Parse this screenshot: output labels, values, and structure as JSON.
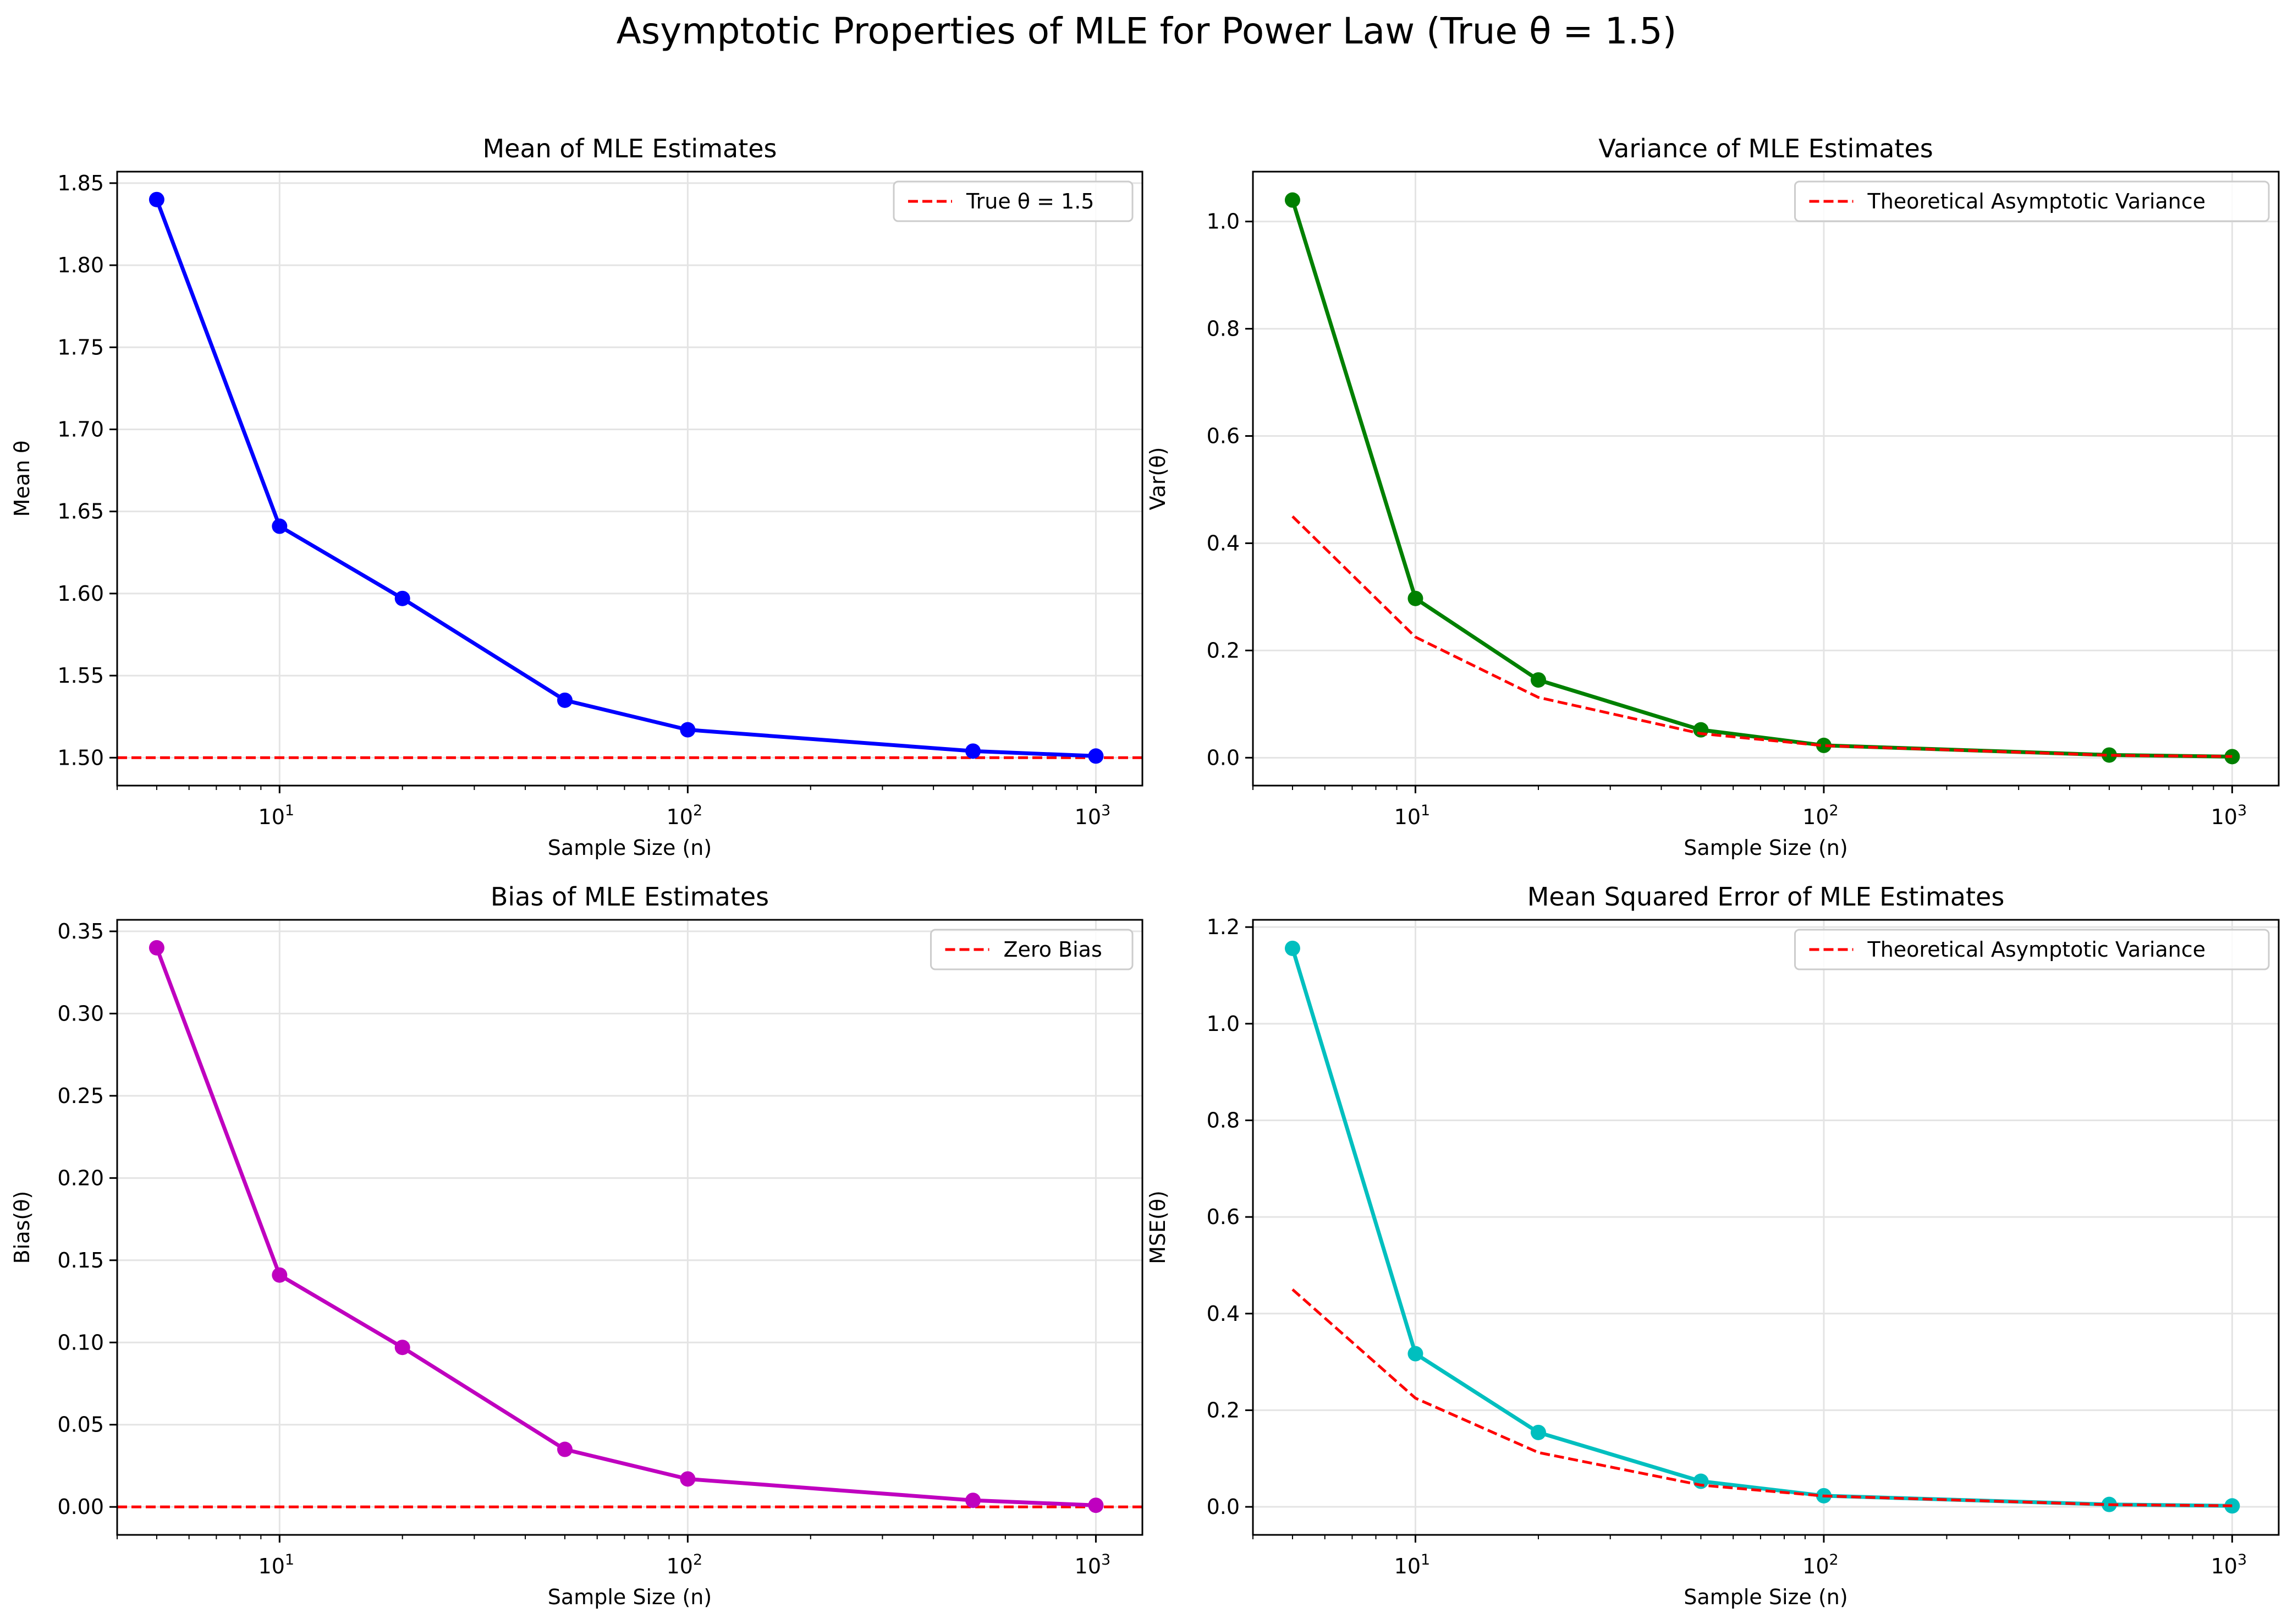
{
  "figure_title": "Asymptotic Properties of MLE for Power Law (True θ = 1.5)",
  "chart_data": [
    {
      "type": "line",
      "title": "Mean of MLE Estimates",
      "xlabel": "Sample Size (n)",
      "ylabel": "Mean θ",
      "xscale": "log",
      "xlim": [
        4,
        1300
      ],
      "ylim": [
        1.483,
        1.857
      ],
      "yticks": [
        1.5,
        1.55,
        1.6,
        1.65,
        1.7,
        1.75,
        1.8,
        1.85
      ],
      "ytick_labels": [
        "1.50",
        "1.55",
        "1.60",
        "1.65",
        "1.70",
        "1.75",
        "1.80",
        "1.85"
      ],
      "grid": true,
      "legend_position": "top-right",
      "x": [
        5,
        10,
        20,
        50,
        100,
        500,
        1000
      ],
      "series": [
        {
          "values": [
            1.84,
            1.641,
            1.597,
            1.535,
            1.517,
            1.504,
            1.501
          ],
          "color": "#0000ff",
          "style": "solid",
          "markers": true
        }
      ],
      "hlines": [
        {
          "name": "True θ = 1.5",
          "y": 1.5,
          "color": "#ff0000",
          "style": "dashed"
        }
      ]
    },
    {
      "type": "line",
      "title": "Variance of MLE Estimates",
      "xlabel": "Sample Size (n)",
      "ylabel": "Var(θ)",
      "xscale": "log",
      "xlim": [
        4,
        1300
      ],
      "ylim": [
        -0.052,
        1.093
      ],
      "yticks": [
        0.0,
        0.2,
        0.4,
        0.6,
        0.8,
        1.0
      ],
      "ytick_labels": [
        "0.0",
        "0.2",
        "0.4",
        "0.6",
        "0.8",
        "1.0"
      ],
      "grid": true,
      "legend_position": "top-right",
      "x": [
        5,
        10,
        20,
        50,
        100,
        500,
        1000
      ],
      "series": [
        {
          "values": [
            1.04,
            0.297,
            0.145,
            0.052,
            0.023,
            0.005,
            0.002
          ],
          "color": "#008000",
          "style": "solid",
          "markers": true
        },
        {
          "name": "Theoretical Asymptotic Variance",
          "values": [
            0.45,
            0.225,
            0.1125,
            0.045,
            0.0225,
            0.0045,
            0.00225
          ],
          "color": "#ff0000",
          "style": "dashed",
          "markers": false
        }
      ]
    },
    {
      "type": "line",
      "title": "Bias of MLE Estimates",
      "xlabel": "Sample Size (n)",
      "ylabel": "Bias(θ)",
      "xscale": "log",
      "xlim": [
        4,
        1300
      ],
      "ylim": [
        -0.017,
        0.357
      ],
      "yticks": [
        0.0,
        0.05,
        0.1,
        0.15,
        0.2,
        0.25,
        0.3,
        0.35
      ],
      "ytick_labels": [
        "0.00",
        "0.05",
        "0.10",
        "0.15",
        "0.20",
        "0.25",
        "0.30",
        "0.35"
      ],
      "grid": true,
      "legend_position": "top-right",
      "x": [
        5,
        10,
        20,
        50,
        100,
        500,
        1000
      ],
      "series": [
        {
          "values": [
            0.34,
            0.141,
            0.097,
            0.035,
            0.017,
            0.004,
            0.001
          ],
          "color": "#bf00bf",
          "style": "solid",
          "markers": true
        }
      ],
      "hlines": [
        {
          "name": "Zero Bias",
          "y": 0.0,
          "color": "#ff0000",
          "style": "dashed"
        }
      ]
    },
    {
      "type": "line",
      "title": "Mean Squared Error of MLE Estimates",
      "xlabel": "Sample Size (n)",
      "ylabel": "MSE(θ)",
      "xscale": "log",
      "xlim": [
        4,
        1300
      ],
      "ylim": [
        -0.058,
        1.215
      ],
      "yticks": [
        0.0,
        0.2,
        0.4,
        0.6,
        0.8,
        1.0,
        1.2
      ],
      "ytick_labels": [
        "0.0",
        "0.2",
        "0.4",
        "0.6",
        "0.8",
        "1.0",
        "1.2"
      ],
      "grid": true,
      "legend_position": "top-right",
      "x": [
        5,
        10,
        20,
        50,
        100,
        500,
        1000
      ],
      "series": [
        {
          "values": [
            1.156,
            0.317,
            0.154,
            0.053,
            0.023,
            0.005,
            0.002
          ],
          "color": "#00bfbf",
          "style": "solid",
          "markers": true
        },
        {
          "name": "Theoretical Asymptotic Variance",
          "values": [
            0.45,
            0.225,
            0.1125,
            0.045,
            0.0225,
            0.0045,
            0.00225
          ],
          "color": "#ff0000",
          "style": "dashed",
          "markers": false
        }
      ]
    }
  ]
}
